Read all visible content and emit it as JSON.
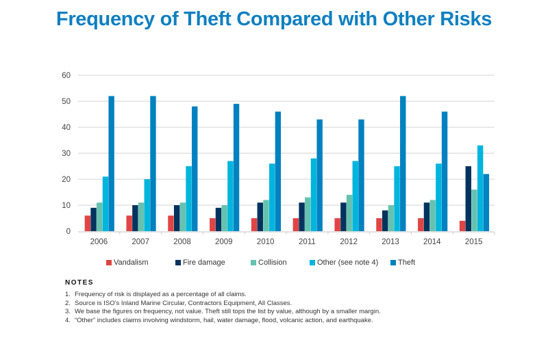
{
  "title": "Frequency of Theft Compared with Other Risks",
  "chart_data": {
    "type": "bar",
    "title": "Frequency of Theft Compared with Other Risks",
    "xlabel": "",
    "ylabel": "",
    "ylim": [
      0,
      60
    ],
    "yticks": [
      0,
      10,
      20,
      30,
      40,
      50,
      60
    ],
    "grid": true,
    "legend_position": "bottom",
    "categories": [
      "2006",
      "2007",
      "2008",
      "2009",
      "2010",
      "2011",
      "2012",
      "2013",
      "2014",
      "2015"
    ],
    "series": [
      {
        "name": "Vandalism",
        "color": "#e04545",
        "values": [
          6,
          6,
          6,
          5,
          5,
          5,
          5,
          5,
          5,
          4
        ]
      },
      {
        "name": "Fire damage",
        "color": "#00335e",
        "values": [
          9,
          10,
          10,
          9,
          11,
          11,
          11,
          8,
          11,
          25
        ]
      },
      {
        "name": "Collision",
        "color": "#66c2b0",
        "values": [
          11,
          11,
          11,
          10,
          12,
          13,
          14,
          10,
          12,
          16
        ]
      },
      {
        "name": "Other (see note 4)",
        "color": "#00b5dd",
        "values": [
          21,
          20,
          25,
          27,
          26,
          28,
          27,
          25,
          26,
          33
        ]
      },
      {
        "name": "Theft",
        "color": "#0081c0",
        "values": [
          52,
          52,
          48,
          49,
          46,
          43,
          43,
          52,
          46,
          22
        ]
      }
    ]
  },
  "notes": {
    "heading": "NOTES",
    "items": [
      {
        "num": "1.",
        "text": "Frequency of risk is displayed as a percentage of all claims."
      },
      {
        "num": "2.",
        "text": "Source is ISO’s Inland Marine Circular, Contractors Equipment, All Classes."
      },
      {
        "num": "3.",
        "text": "We base the figures on frequency, not value. Theft still tops the list by value, although by a smaller margin."
      },
      {
        "num": "4.",
        "text": "“Other” includes claims involving windstorm, hail, water damage, flood, volcanic action, and earthquake."
      }
    ]
  }
}
